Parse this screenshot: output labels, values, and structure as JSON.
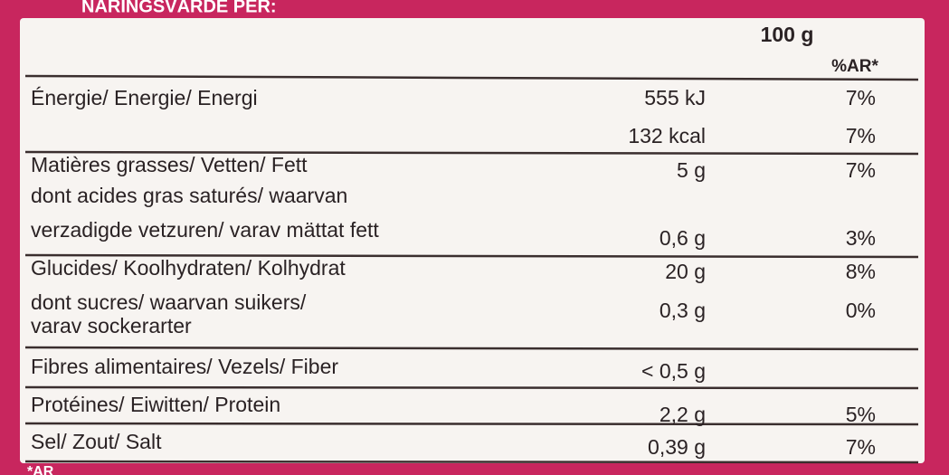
{
  "table": {
    "header_title": "NÄRINGSVÄRDE PER:",
    "columns": [
      "100 g",
      "%AR*"
    ],
    "lines": [
      {
        "label": "Énergie/ Energie/ Energi",
        "amount": "555 kJ",
        "percent": "7%"
      },
      {
        "amount": "132 kcal",
        "percent": "7%"
      },
      {
        "label": "Matières grasses/ Vetten/ Fett",
        "amount": "5 g",
        "percent": "7%"
      },
      {
        "label": "dont acides gras saturés/ waarvan"
      },
      {
        "label": "verzadigde vetzuren/ varav mättat fett",
        "amount": "0,6 g",
        "percent": "3%"
      },
      {
        "label": "Glucides/ Koolhydraten/ Kolhydrat",
        "amount": "20 g",
        "percent": "8%"
      },
      {
        "label": "dont sucres/ waarvan suikers/",
        "amount": "0,3 g",
        "percent": "0%"
      },
      {
        "label": "varav sockerarter"
      },
      {
        "label": "Fibres alimentaires/ Vezels/ Fiber",
        "amount": "< 0,5 g"
      },
      {
        "label": "Protéines/ Eiwitten/ Protein",
        "amount": "2,2 g",
        "percent": "5%"
      },
      {
        "label": "Sel/ Zout/ Salt",
        "amount": "0,39 g",
        "percent": "7%"
      }
    ],
    "footnote": "*AR"
  }
}
